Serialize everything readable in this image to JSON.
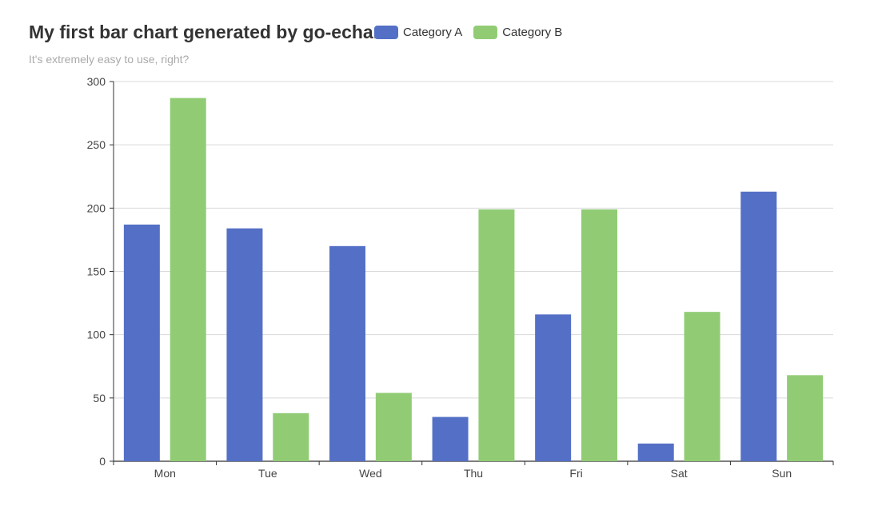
{
  "chart_data": {
    "type": "bar",
    "title": "My first bar chart generated by go-echarts",
    "subtitle": "It's extremely easy to use, right?",
    "categories": [
      "Mon",
      "Tue",
      "Wed",
      "Thu",
      "Fri",
      "Sat",
      "Sun"
    ],
    "series": [
      {
        "name": "Category A",
        "color": "#5470c6",
        "values": [
          187,
          184,
          170,
          35,
          116,
          14,
          213
        ]
      },
      {
        "name": "Category B",
        "color": "#91cc75",
        "values": [
          287,
          38,
          54,
          199,
          199,
          118,
          68
        ]
      }
    ],
    "ylim": [
      0,
      300
    ],
    "yticks": [
      0,
      50,
      100,
      150,
      200,
      250,
      300
    ],
    "grid": true,
    "legend_position": "top-center"
  }
}
